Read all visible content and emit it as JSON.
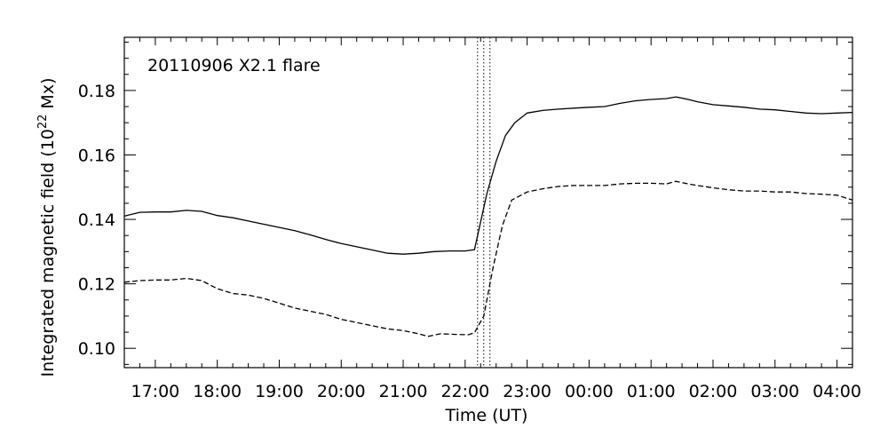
{
  "chart_data": {
    "type": "line",
    "annotation": "20110906 X2.1 flare",
    "xlabel": "Time (UT)",
    "ylabel_text": "Integrated magnetic field (10",
    "ylabel_exp": "22",
    "ylabel_unit": " Mx)",
    "x_unit": "hours since 2011-09-06 00:00 UT",
    "xlim": [
      16.5,
      28.25
    ],
    "ylim": [
      0.094,
      0.1965
    ],
    "x_ticks": [
      {
        "x": 17,
        "label": "17:00"
      },
      {
        "x": 18,
        "label": "18:00"
      },
      {
        "x": 19,
        "label": "19:00"
      },
      {
        "x": 20,
        "label": "20:00"
      },
      {
        "x": 21,
        "label": "21:00"
      },
      {
        "x": 22,
        "label": "22:00"
      },
      {
        "x": 23,
        "label": "23:00"
      },
      {
        "x": 24,
        "label": "00:00"
      },
      {
        "x": 25,
        "label": "01:00"
      },
      {
        "x": 26,
        "label": "02:00"
      },
      {
        "x": 27,
        "label": "03:00"
      },
      {
        "x": 28,
        "label": "04:00"
      }
    ],
    "y_ticks": [
      {
        "y": 0.1,
        "label": "0.10"
      },
      {
        "y": 0.12,
        "label": "0.12"
      },
      {
        "y": 0.14,
        "label": "0.14"
      },
      {
        "y": 0.16,
        "label": "0.16"
      },
      {
        "y": 0.18,
        "label": "0.18"
      }
    ],
    "vlines": [
      22.2,
      22.3,
      22.4
    ],
    "series": [
      {
        "style": "solid",
        "points": [
          [
            16.5,
            0.141
          ],
          [
            16.75,
            0.1422
          ],
          [
            17.0,
            0.1423
          ],
          [
            17.25,
            0.1423
          ],
          [
            17.5,
            0.1428
          ],
          [
            17.75,
            0.1425
          ],
          [
            18.0,
            0.1412
          ],
          [
            18.25,
            0.1405
          ],
          [
            18.5,
            0.1395
          ],
          [
            18.75,
            0.1385
          ],
          [
            19.0,
            0.1375
          ],
          [
            19.25,
            0.1365
          ],
          [
            19.5,
            0.1352
          ],
          [
            19.75,
            0.1338
          ],
          [
            20.0,
            0.1325
          ],
          [
            20.25,
            0.1315
          ],
          [
            20.5,
            0.1305
          ],
          [
            20.75,
            0.1295
          ],
          [
            21.0,
            0.1292
          ],
          [
            21.25,
            0.1295
          ],
          [
            21.5,
            0.13
          ],
          [
            21.75,
            0.1302
          ],
          [
            22.0,
            0.1302
          ],
          [
            22.15,
            0.1306
          ],
          [
            22.35,
            0.148
          ],
          [
            22.5,
            0.158
          ],
          [
            22.65,
            0.166
          ],
          [
            22.8,
            0.17
          ],
          [
            23.0,
            0.173
          ],
          [
            23.25,
            0.1738
          ],
          [
            23.5,
            0.1742
          ],
          [
            23.75,
            0.1745
          ],
          [
            24.0,
            0.1748
          ],
          [
            24.25,
            0.175
          ],
          [
            24.5,
            0.176
          ],
          [
            24.75,
            0.1768
          ],
          [
            25.0,
            0.1772
          ],
          [
            25.25,
            0.1775
          ],
          [
            25.4,
            0.178
          ],
          [
            25.6,
            0.1772
          ],
          [
            25.75,
            0.1765
          ],
          [
            26.0,
            0.1756
          ],
          [
            26.25,
            0.1752
          ],
          [
            26.5,
            0.1748
          ],
          [
            26.75,
            0.1742
          ],
          [
            27.0,
            0.174
          ],
          [
            27.25,
            0.1735
          ],
          [
            27.5,
            0.173
          ],
          [
            27.75,
            0.1728
          ],
          [
            28.0,
            0.173
          ],
          [
            28.25,
            0.1732
          ]
        ]
      },
      {
        "style": "dashed",
        "points": [
          [
            16.5,
            0.1205
          ],
          [
            16.75,
            0.121
          ],
          [
            17.0,
            0.1212
          ],
          [
            17.25,
            0.1212
          ],
          [
            17.5,
            0.1217
          ],
          [
            17.75,
            0.121
          ],
          [
            18.0,
            0.1185
          ],
          [
            18.25,
            0.117
          ],
          [
            18.5,
            0.1165
          ],
          [
            18.75,
            0.1155
          ],
          [
            19.0,
            0.114
          ],
          [
            19.25,
            0.1125
          ],
          [
            19.5,
            0.1115
          ],
          [
            19.75,
            0.1105
          ],
          [
            20.0,
            0.109
          ],
          [
            20.25,
            0.108
          ],
          [
            20.5,
            0.107
          ],
          [
            20.75,
            0.106
          ],
          [
            21.0,
            0.1055
          ],
          [
            21.25,
            0.1045
          ],
          [
            21.4,
            0.1037
          ],
          [
            21.6,
            0.1045
          ],
          [
            21.85,
            0.1043
          ],
          [
            22.05,
            0.1042
          ],
          [
            22.15,
            0.1048
          ],
          [
            22.3,
            0.11
          ],
          [
            22.45,
            0.125
          ],
          [
            22.6,
            0.138
          ],
          [
            22.75,
            0.146
          ],
          [
            23.0,
            0.1485
          ],
          [
            23.25,
            0.1495
          ],
          [
            23.5,
            0.1502
          ],
          [
            23.75,
            0.1505
          ],
          [
            24.0,
            0.1505
          ],
          [
            24.25,
            0.1505
          ],
          [
            24.5,
            0.151
          ],
          [
            24.75,
            0.1512
          ],
          [
            25.0,
            0.1512
          ],
          [
            25.25,
            0.151
          ],
          [
            25.4,
            0.1518
          ],
          [
            25.6,
            0.151
          ],
          [
            25.75,
            0.1505
          ],
          [
            26.0,
            0.1498
          ],
          [
            26.25,
            0.1492
          ],
          [
            26.5,
            0.1488
          ],
          [
            26.75,
            0.1488
          ],
          [
            27.0,
            0.1485
          ],
          [
            27.25,
            0.1485
          ],
          [
            27.5,
            0.148
          ],
          [
            27.75,
            0.1478
          ],
          [
            28.0,
            0.1475
          ],
          [
            28.25,
            0.146
          ]
        ]
      }
    ]
  }
}
